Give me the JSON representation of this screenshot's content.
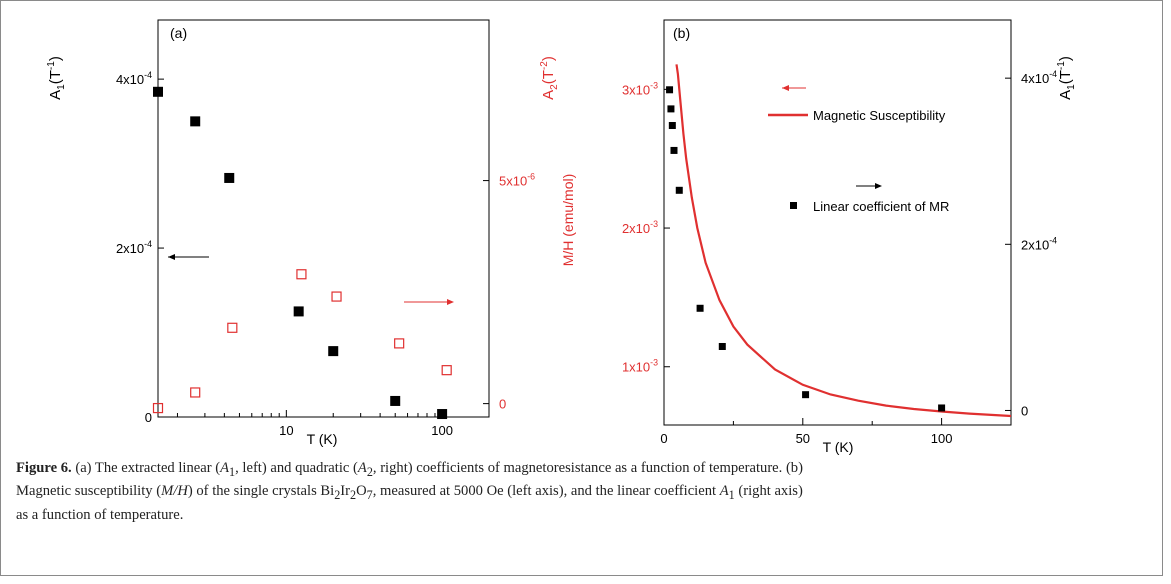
{
  "chart_data": [
    {
      "panel": "(a)",
      "type": "scatter",
      "x_scale": "log",
      "xlabel": "T (K)",
      "xlim": [
        1.5,
        200
      ],
      "x_tick_labels": [
        "10",
        "100"
      ],
      "left_axis": {
        "label_base": "A",
        "label_sub": "1",
        "label_unit": "(T",
        "label_exp": "-1",
        "label_close": ")",
        "ylim": [
          0,
          0.00047
        ],
        "tick_labels": [
          {
            "value": 0,
            "base": "0",
            "exp": ""
          },
          {
            "value": 0.0002,
            "base": "2x10",
            "exp": "-4"
          },
          {
            "value": 0.0004,
            "base": "4x10",
            "exp": "-4"
          }
        ],
        "color": "#000000"
      },
      "right_axis": {
        "label_base": "A",
        "label_sub": "2",
        "label_unit": "(T",
        "label_exp": "-2",
        "label_close": ")",
        "ylim": [
          -3e-07,
          8.6e-06
        ],
        "tick_labels": [
          {
            "value": 0,
            "base": "0",
            "exp": ""
          },
          {
            "value": 5e-06,
            "base": "5x10",
            "exp": "-6"
          }
        ],
        "color": "#e03030"
      },
      "series": [
        {
          "axis": "left",
          "marker": "filled-square",
          "color": "#000000",
          "x": [
            1.5,
            2.6,
            4.3,
            12,
            20,
            50,
            100
          ],
          "y": [
            0.000385,
            0.00035,
            0.000283,
            0.000125,
            7.8e-05,
            1.9e-05,
            3.5e-06
          ]
        },
        {
          "axis": "right",
          "marker": "open-square",
          "color": "#e03030",
          "x": [
            1.5,
            2.6,
            4.5,
            12.5,
            21,
            53,
            107
          ],
          "y": [
            -1e-07,
            2.5e-07,
            1.7e-06,
            2.9e-06,
            2.4e-06,
            1.35e-06,
            7.5e-07
          ]
        }
      ]
    },
    {
      "panel": "(b)",
      "type": "scatter",
      "xlabel": "T (K)",
      "xlim": [
        0,
        125
      ],
      "x_tick_labels": [
        "0",
        "50",
        "100"
      ],
      "left_axis": {
        "label": "M/H (emu/mol)",
        "ylim": [
          0.00058,
          0.0035
        ],
        "tick_labels": [
          {
            "value": 0.001,
            "base": "1x10",
            "exp": "-3"
          },
          {
            "value": 0.002,
            "base": "2x10",
            "exp": "-3"
          },
          {
            "value": 0.003,
            "base": "3x10",
            "exp": "-3"
          }
        ],
        "color": "#e03030"
      },
      "right_axis": {
        "label_base": "A",
        "label_sub": "1",
        "label_unit": "(T",
        "label_exp": "-1",
        "label_close": ")",
        "ylim": [
          -1.75e-05,
          0.00047
        ],
        "tick_labels": [
          {
            "value": 0,
            "base": "0",
            "exp": ""
          },
          {
            "value": 0.0002,
            "base": "2x10",
            "exp": "-4"
          },
          {
            "value": 0.0004,
            "base": "4x10",
            "exp": "-4"
          }
        ],
        "color": "#000000"
      },
      "series": [
        {
          "name": "Magnetic Susceptibility",
          "axis": "left",
          "kind": "line",
          "color": "#e03030",
          "x": [
            4.5,
            5,
            6,
            7,
            8,
            10,
            12,
            15,
            20,
            25,
            30,
            40,
            50,
            60,
            70,
            80,
            90,
            100,
            110,
            125
          ],
          "y": [
            0.00318,
            0.00311,
            0.00289,
            0.00268,
            0.0025,
            0.00222,
            0.002,
            0.00175,
            0.00148,
            0.00129,
            0.00116,
            0.00098,
            0.00087,
            0.0008,
            0.000755,
            0.00072,
            0.000695,
            0.000677,
            0.000662,
            0.000645
          ]
        },
        {
          "name": "Linear coefficient of MR",
          "axis": "right",
          "kind": "marker",
          "marker": "filled-square",
          "color": "#000000",
          "x": [
            2,
            2.5,
            3,
            3.6,
            5.5,
            13,
            21,
            51,
            100
          ],
          "y": [
            0.000386,
            0.000363,
            0.000343,
            0.000313,
            0.000265,
            0.000123,
            7.7e-05,
            1.9e-05,
            3e-06
          ]
        }
      ]
    }
  ],
  "caption": {
    "label": "Figure 6.",
    "line1_a": "(a) The extracted linear (",
    "line1_a1": "A",
    "line1_a1_sub": "1",
    "line1_b": ", left) and quadratic (",
    "line1_a2": "A",
    "line1_a2_sub": "2",
    "line1_c": ", right) coefficients of magnetoresistance as a function of temperature. (b)",
    "line2_a": "Magnetic susceptibility (",
    "line2_mh": "M/H",
    "line2_b": ") of the single crystals Bi",
    "sub_2a": "2",
    "line2_ir": "Ir",
    "sub_2b": "2",
    "line2_o": "O",
    "sub_7": "7",
    "line2_c": ", measured at 5000 Oe (left axis), and the linear coefficient ",
    "line2_a1": "A",
    "line2_a1_sub": "1",
    "line2_d": " (right axis)",
    "line3": "as a function of temperature."
  }
}
